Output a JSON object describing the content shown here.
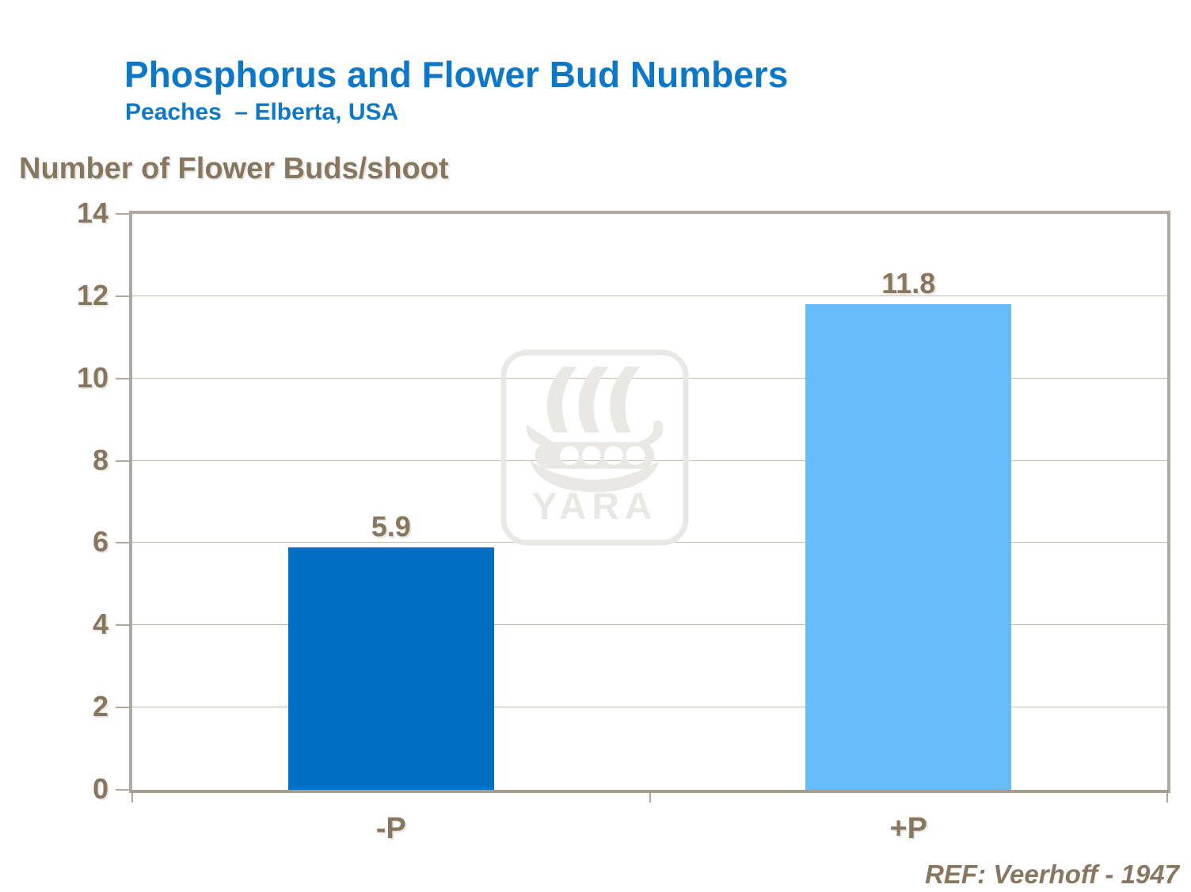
{
  "chart_data": {
    "type": "bar",
    "title": "Phosphorus and Flower Bud Numbers",
    "subtitle": "Peaches  – Elberta, USA",
    "ylabel": "Number of Flower Buds/shoot",
    "xlabel": "",
    "categories": [
      "-P",
      "+P"
    ],
    "values": [
      5.9,
      11.8
    ],
    "data_labels": [
      "5.9",
      "11.8"
    ],
    "ylim": [
      0,
      14
    ],
    "yticks": [
      0,
      2,
      4,
      6,
      8,
      10,
      12,
      14
    ],
    "ytick_step": 2,
    "grid": true,
    "legend": false,
    "legend_position": "none",
    "bar_colors": [
      "#0071c0",
      "#68bcf9"
    ],
    "reference": "REF: Veerhoff - 1947",
    "watermark": "YARA"
  },
  "colors": {
    "title_blue": "#0e78c8",
    "chart_text_brown": "#877760",
    "axis_line_taupe": "#b2a89b",
    "gridline_taupe": "#c9bfaf",
    "bar_minus_p_blue": "#0071c0",
    "bar_plus_p_light_blue": "#68bcf9",
    "watermark_gray": "#e9e8e5",
    "background": "#ffffff"
  }
}
